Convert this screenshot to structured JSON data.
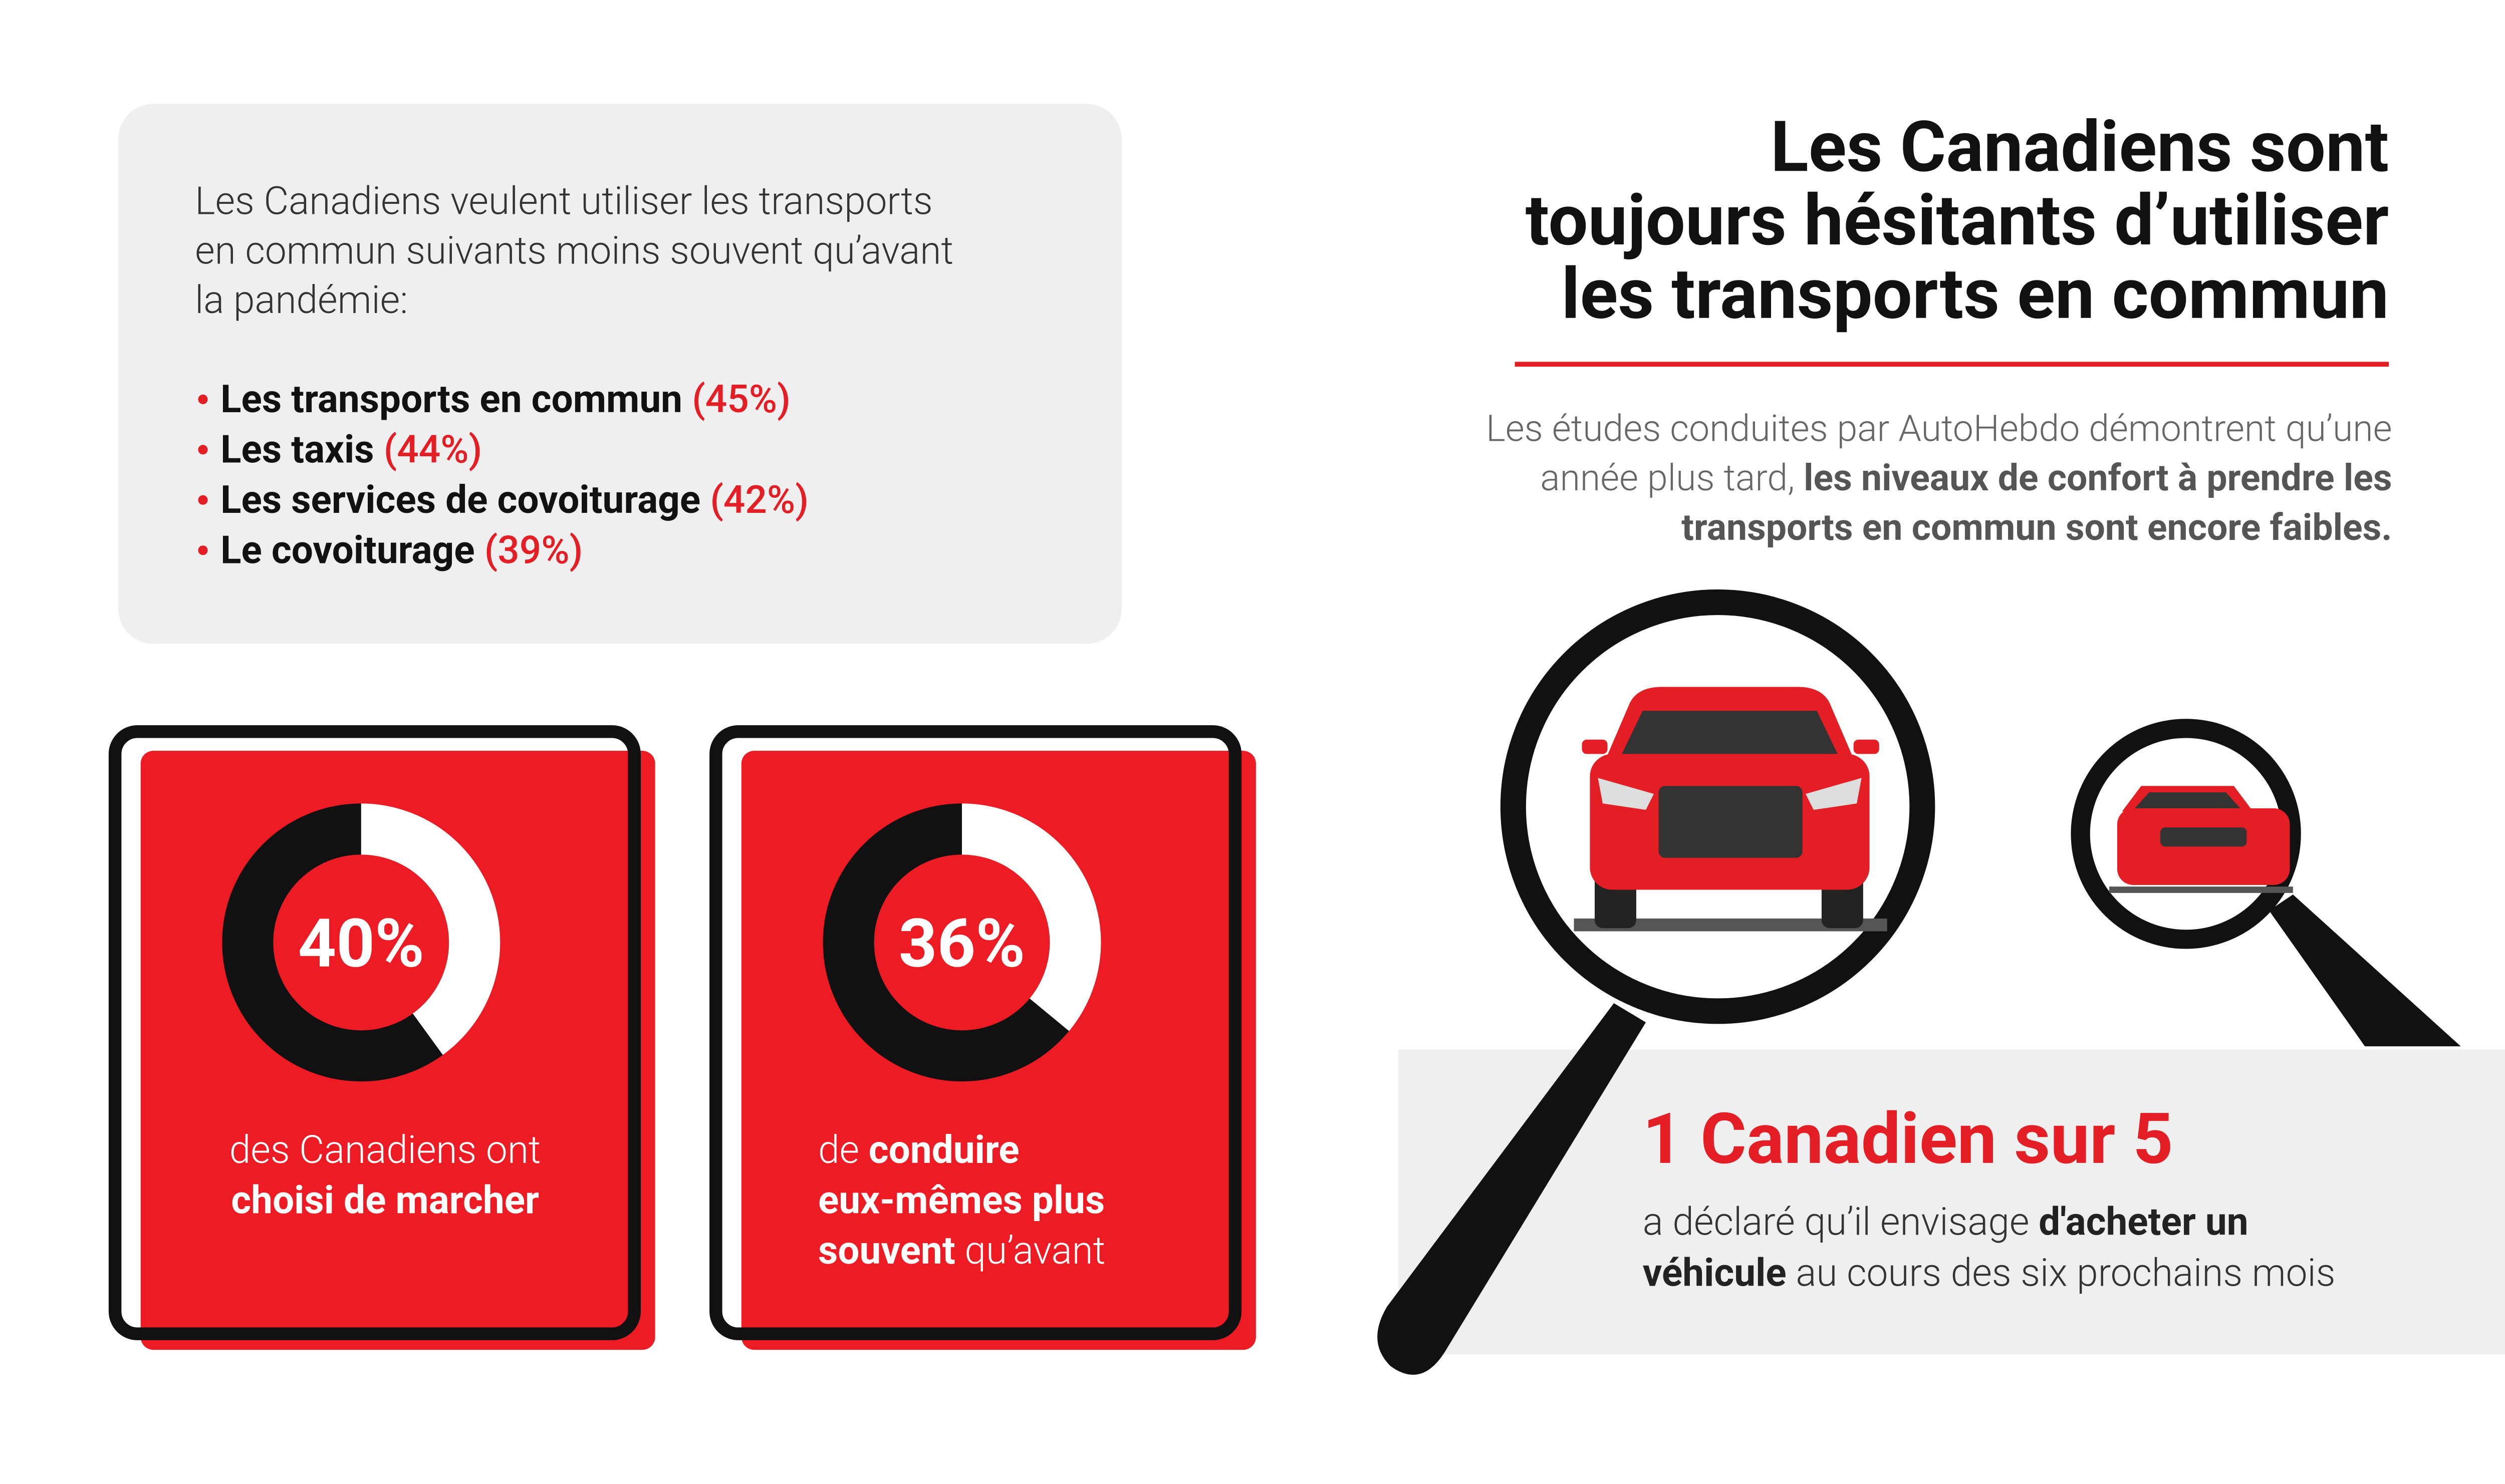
{
  "intro": {
    "lines": [
      "Les Canadiens veulent utiliser les transports",
      "en commun suivants moins souvent qu’avant",
      "la pandémie:"
    ],
    "items": [
      {
        "label": "Les transports en commun",
        "share": "(45%)"
      },
      {
        "label": "Les taxis",
        "share": "(44%)"
      },
      {
        "label": "Les services de covoiturage",
        "share": "(42%)"
      },
      {
        "label": "Le covoiturage",
        "share": "(39%)"
      }
    ]
  },
  "title": {
    "lines": [
      "Les Canadiens sont",
      "toujours hésitants d’utiliser",
      "les transports en commun"
    ]
  },
  "subtitle": {
    "lines": [
      [
        "Les études conduites par AutoHebdo démontrent qu’une"
      ],
      [
        "année plus tard, ",
        "les niveaux de confort à prendre les"
      ],
      [
        "transports en commun sont encore faibles."
      ]
    ]
  },
  "stats": [
    {
      "value": 40,
      "value_label": "40%",
      "caption": [
        [
          "des Canadiens ont"
        ],
        [
          "choisi de marcher"
        ]
      ]
    },
    {
      "value": 36,
      "value_label": "36%",
      "caption": [
        [
          "de ",
          "conduire"
        ],
        [
          "eux-mêmes plus"
        ],
        [
          "souvent",
          " qu’avant"
        ]
      ]
    }
  ],
  "highlight": {
    "headline": "1 Canadien sur 5",
    "lines": [
      [
        "a déclaré qu’il envisage ",
        "d'acheter un"
      ],
      [
        "véhicule",
        " au cours des six prochains mois"
      ]
    ]
  }
}
